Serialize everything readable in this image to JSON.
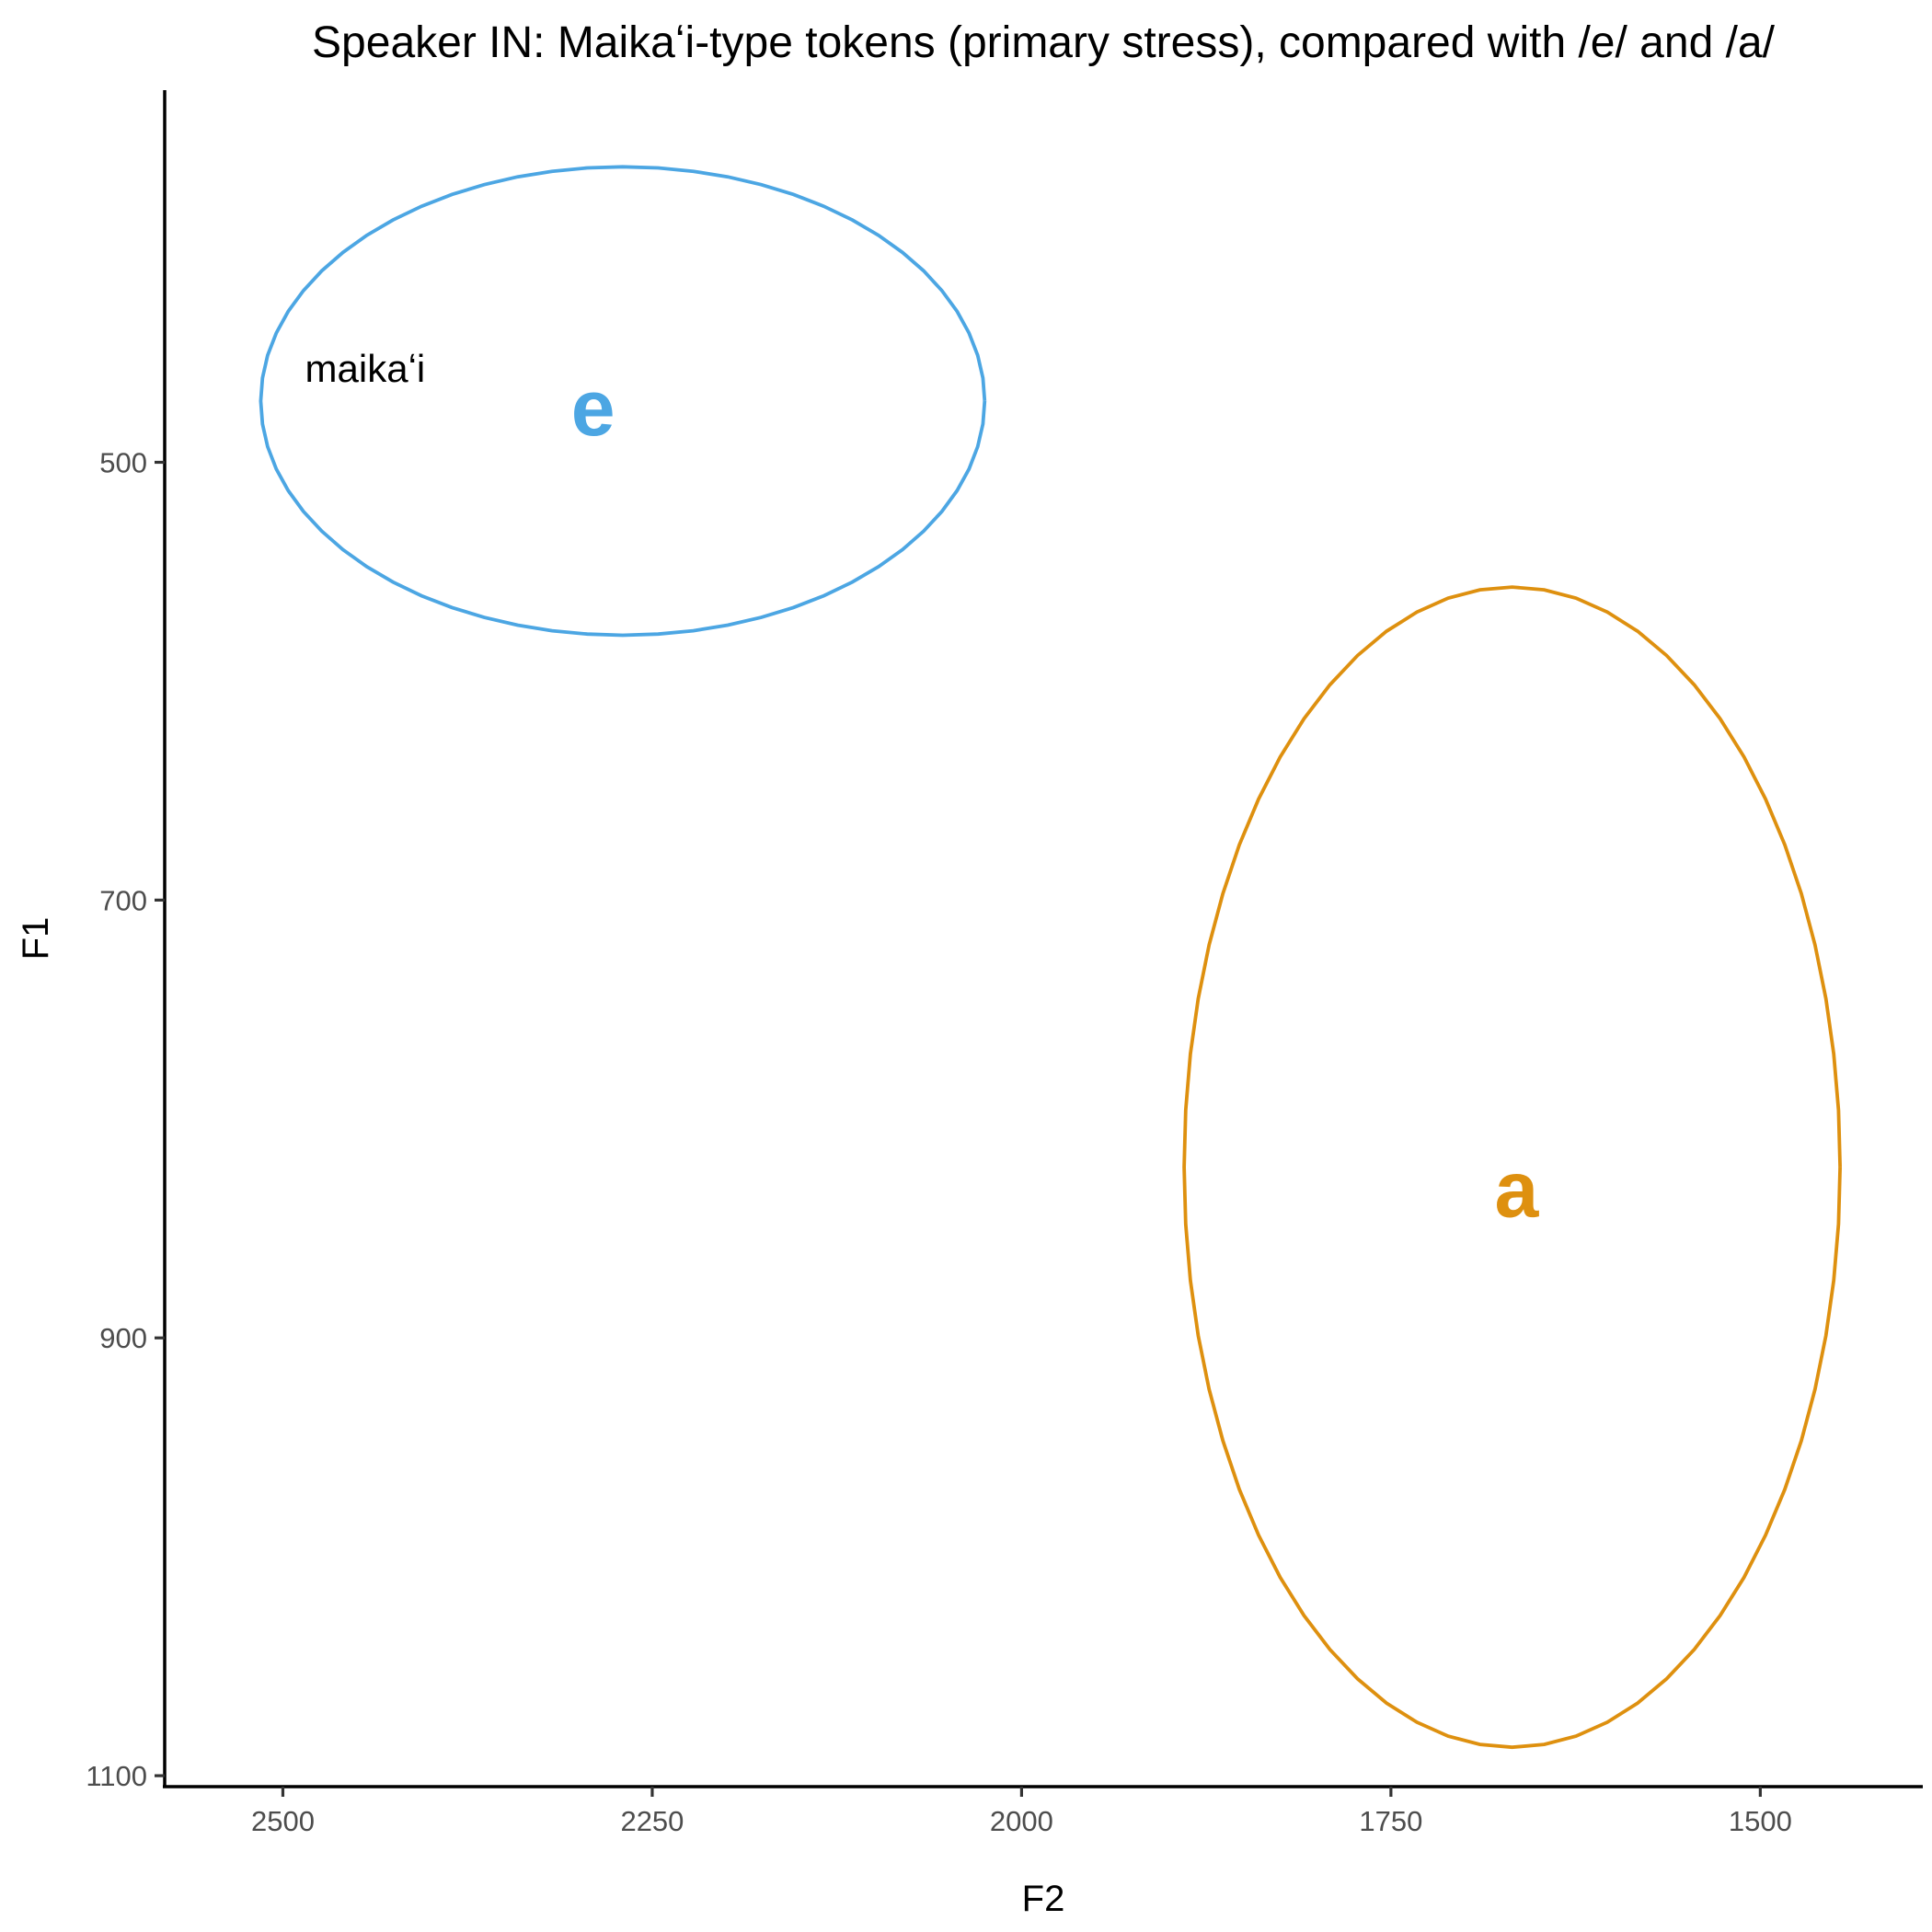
{
  "chart_data": {
    "type": "scatter",
    "title": "Speaker IN: Maikaʻi-type tokens (primary stress), compared with /e/ and /a/",
    "xlabel": "F2",
    "ylabel": "F1",
    "x_reversed": true,
    "y_reversed": true,
    "xlim": [
      2580,
      1390
    ],
    "ylim": [
      330,
      1105
    ],
    "x_ticks": [
      2500,
      2250,
      2000,
      1750,
      1500
    ],
    "y_ticks": [
      500,
      700,
      900,
      1100
    ],
    "grid": false,
    "legend": "none",
    "series": [
      {
        "name": "e",
        "color": "#4CA6E3",
        "mean": {
          "x": 2290,
          "y": 475
        },
        "ellipse": {
          "center": {
            "x": 2270,
            "y": 472
          },
          "rx_units": 245,
          "ry_units": 107
        }
      },
      {
        "name": "a",
        "color": "#DE900F",
        "mean": {
          "x": 1665,
          "y": 832
        },
        "ellipse": {
          "center": {
            "x": 1668,
            "y": 822
          },
          "rx_units": 222,
          "ry_units": 265
        }
      }
    ],
    "annotations": [
      {
        "text": "maikaʻi",
        "x": 2485,
        "y": 457
      }
    ]
  }
}
